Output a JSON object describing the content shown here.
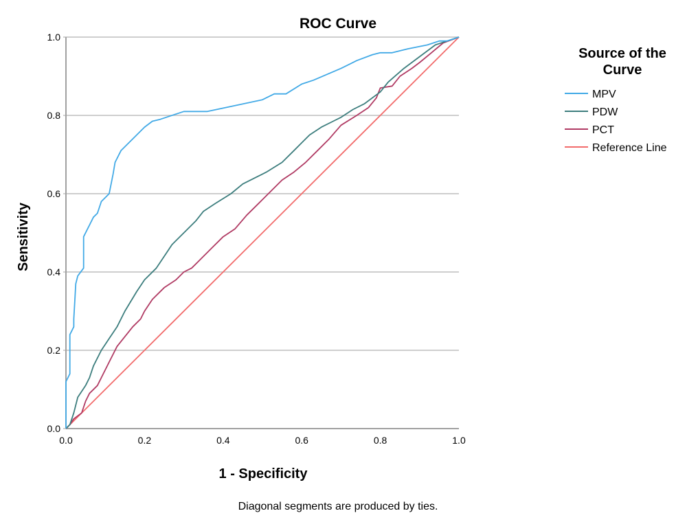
{
  "chart_data": {
    "type": "line",
    "title": "ROC Curve",
    "xlabel": "1 - Specificity",
    "ylabel": "Sensitivity",
    "xlim": [
      0,
      1
    ],
    "ylim": [
      0,
      1
    ],
    "xticks": [
      "0.0",
      "0.2",
      "0.4",
      "0.6",
      "0.8",
      "1.0"
    ],
    "yticks": [
      "0.0",
      "0.2",
      "0.4",
      "0.6",
      "0.8",
      "1.0"
    ],
    "grid": "horizontal",
    "legend": {
      "title_lines": [
        "Source of the",
        "Curve"
      ],
      "position": "right"
    },
    "footnote": "Diagonal segments are produced by ties.",
    "series": [
      {
        "name": "MPV",
        "color": "#41a9e6",
        "points": [
          [
            0,
            0
          ],
          [
            0,
            0.12
          ],
          [
            0.01,
            0.14
          ],
          [
            0.01,
            0.24
          ],
          [
            0.02,
            0.26
          ],
          [
            0.02,
            0.28
          ],
          [
            0.025,
            0.37
          ],
          [
            0.03,
            0.39
          ],
          [
            0.045,
            0.41
          ],
          [
            0.045,
            0.49
          ],
          [
            0.06,
            0.52
          ],
          [
            0.07,
            0.54
          ],
          [
            0.08,
            0.55
          ],
          [
            0.09,
            0.58
          ],
          [
            0.11,
            0.6
          ],
          [
            0.12,
            0.65
          ],
          [
            0.125,
            0.68
          ],
          [
            0.14,
            0.71
          ],
          [
            0.17,
            0.74
          ],
          [
            0.2,
            0.77
          ],
          [
            0.22,
            0.785
          ],
          [
            0.24,
            0.79
          ],
          [
            0.3,
            0.81
          ],
          [
            0.36,
            0.81
          ],
          [
            0.43,
            0.825
          ],
          [
            0.5,
            0.84
          ],
          [
            0.53,
            0.855
          ],
          [
            0.56,
            0.855
          ],
          [
            0.6,
            0.88
          ],
          [
            0.63,
            0.89
          ],
          [
            0.7,
            0.92
          ],
          [
            0.74,
            0.94
          ],
          [
            0.78,
            0.955
          ],
          [
            0.8,
            0.96
          ],
          [
            0.83,
            0.96
          ],
          [
            0.87,
            0.97
          ],
          [
            0.92,
            0.98
          ],
          [
            0.95,
            0.99
          ],
          [
            0.97,
            0.99
          ],
          [
            1,
            1
          ]
        ]
      },
      {
        "name": "PDW",
        "color": "#3c7d7d",
        "points": [
          [
            0,
            0
          ],
          [
            0.01,
            0.01
          ],
          [
            0.02,
            0.04
          ],
          [
            0.03,
            0.08
          ],
          [
            0.05,
            0.11
          ],
          [
            0.06,
            0.13
          ],
          [
            0.07,
            0.16
          ],
          [
            0.09,
            0.2
          ],
          [
            0.11,
            0.23
          ],
          [
            0.13,
            0.26
          ],
          [
            0.15,
            0.3
          ],
          [
            0.18,
            0.35
          ],
          [
            0.2,
            0.38
          ],
          [
            0.23,
            0.41
          ],
          [
            0.25,
            0.44
          ],
          [
            0.27,
            0.47
          ],
          [
            0.3,
            0.5
          ],
          [
            0.33,
            0.53
          ],
          [
            0.35,
            0.555
          ],
          [
            0.38,
            0.575
          ],
          [
            0.42,
            0.6
          ],
          [
            0.45,
            0.625
          ],
          [
            0.48,
            0.64
          ],
          [
            0.51,
            0.655
          ],
          [
            0.55,
            0.68
          ],
          [
            0.58,
            0.71
          ],
          [
            0.6,
            0.73
          ],
          [
            0.62,
            0.75
          ],
          [
            0.65,
            0.77
          ],
          [
            0.68,
            0.785
          ],
          [
            0.7,
            0.795
          ],
          [
            0.73,
            0.815
          ],
          [
            0.76,
            0.83
          ],
          [
            0.8,
            0.86
          ],
          [
            0.82,
            0.885
          ],
          [
            0.86,
            0.92
          ],
          [
            0.9,
            0.95
          ],
          [
            0.94,
            0.98
          ],
          [
            0.97,
            0.99
          ],
          [
            1,
            1
          ]
        ]
      },
      {
        "name": "PCT",
        "color": "#b03a63",
        "points": [
          [
            0,
            0
          ],
          [
            0.01,
            0.01
          ],
          [
            0.02,
            0.025
          ],
          [
            0.04,
            0.04
          ],
          [
            0.05,
            0.07
          ],
          [
            0.06,
            0.09
          ],
          [
            0.08,
            0.11
          ],
          [
            0.09,
            0.13
          ],
          [
            0.11,
            0.17
          ],
          [
            0.13,
            0.21
          ],
          [
            0.15,
            0.235
          ],
          [
            0.17,
            0.26
          ],
          [
            0.19,
            0.28
          ],
          [
            0.2,
            0.3
          ],
          [
            0.22,
            0.33
          ],
          [
            0.25,
            0.36
          ],
          [
            0.28,
            0.38
          ],
          [
            0.3,
            0.4
          ],
          [
            0.32,
            0.41
          ],
          [
            0.34,
            0.43
          ],
          [
            0.37,
            0.46
          ],
          [
            0.4,
            0.49
          ],
          [
            0.43,
            0.51
          ],
          [
            0.46,
            0.545
          ],
          [
            0.49,
            0.575
          ],
          [
            0.52,
            0.605
          ],
          [
            0.55,
            0.635
          ],
          [
            0.58,
            0.655
          ],
          [
            0.61,
            0.68
          ],
          [
            0.64,
            0.71
          ],
          [
            0.67,
            0.74
          ],
          [
            0.7,
            0.775
          ],
          [
            0.74,
            0.8
          ],
          [
            0.77,
            0.82
          ],
          [
            0.79,
            0.845
          ],
          [
            0.8,
            0.87
          ],
          [
            0.83,
            0.875
          ],
          [
            0.85,
            0.9
          ],
          [
            0.88,
            0.92
          ],
          [
            0.9,
            0.935
          ],
          [
            0.93,
            0.96
          ],
          [
            0.96,
            0.985
          ],
          [
            1,
            1
          ]
        ]
      },
      {
        "name": "Reference Line",
        "color": "#f26b6b",
        "points": [
          [
            0,
            0
          ],
          [
            1,
            1
          ]
        ]
      }
    ]
  }
}
